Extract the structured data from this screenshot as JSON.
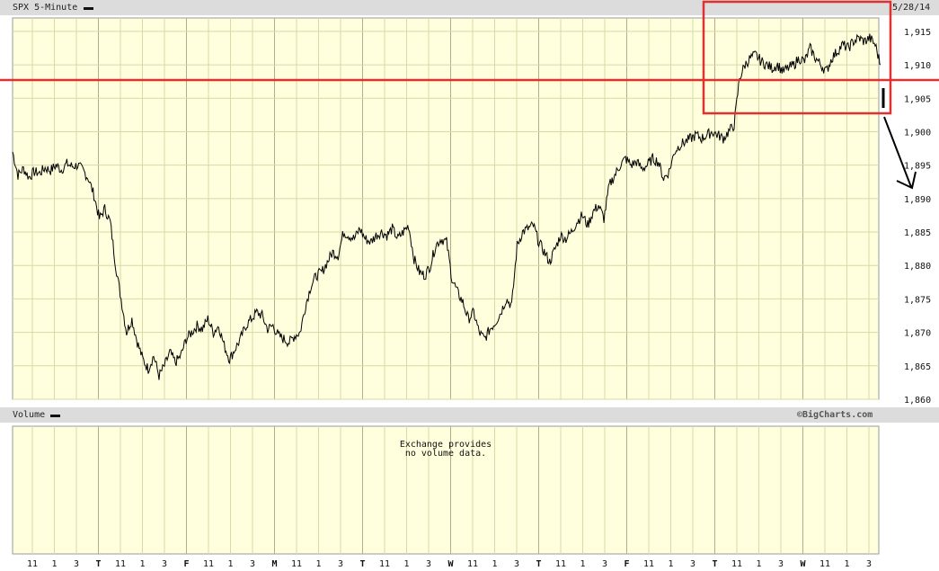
{
  "header": {
    "symbol": "SPX 5-Minute",
    "date": "5/28/14"
  },
  "volume_panel": {
    "label": "Volume",
    "copyright": "©BigCharts.com",
    "message_line1": "Exchange provides",
    "message_line2": "no volume data."
  },
  "chart_data": {
    "type": "line",
    "series": [
      {
        "name": "SPX 5-Minute",
        "values": [
          1897.0,
          1893.5,
          1894.5,
          1893.2,
          1894.0,
          1893.8,
          1894.6,
          1894.2,
          1895.0,
          1894.3,
          1895.2,
          1894.8,
          1895.0,
          1894.2,
          1893.0,
          1890.5,
          1887.0,
          1888.5,
          1886.5,
          1880.0,
          1875.0,
          1870.0,
          1872.0,
          1868.5,
          1866.0,
          1864.5,
          1866.5,
          1863.5,
          1865.0,
          1867.0,
          1865.5,
          1866.5,
          1869.0,
          1870.0,
          1871.0,
          1870.5,
          1872.0,
          1870.0,
          1871.0,
          1868.0,
          1866.0,
          1867.5,
          1869.0,
          1871.0,
          1872.0,
          1873.0,
          1872.5,
          1870.5,
          1871.0,
          1869.5,
          1869.0,
          1868.5,
          1869.5,
          1870.0,
          1874.0,
          1877.0,
          1878.5,
          1879.0,
          1880.5,
          1882.0,
          1881.5,
          1885.0,
          1884.5,
          1884.0,
          1885.5,
          1884.0,
          1883.5,
          1884.5,
          1885.0,
          1884.5,
          1885.5,
          1884.0,
          1885.0,
          1886.0,
          1881.0,
          1879.0,
          1878.5,
          1880.0,
          1883.0,
          1884.0,
          1883.5,
          1878.0,
          1876.0,
          1874.5,
          1872.0,
          1873.0,
          1870.0,
          1869.0,
          1870.5,
          1871.5,
          1873.0,
          1875.0,
          1874.0,
          1883.0,
          1885.0,
          1885.5,
          1886.0,
          1883.5,
          1882.0,
          1880.5,
          1882.5,
          1884.5,
          1884.0,
          1885.0,
          1886.5,
          1887.5,
          1886.0,
          1888.0,
          1889.0,
          1887.0,
          1892.0,
          1893.5,
          1895.0,
          1896.0,
          1895.0,
          1895.5,
          1894.5,
          1895.0,
          1896.0,
          1895.5,
          1893.0,
          1894.0,
          1897.0,
          1898.0,
          1898.5,
          1899.0,
          1899.5,
          1899.0,
          1899.5,
          1900.0,
          1899.5,
          1899.0,
          1900.0,
          1901.0,
          1908.0,
          1910.0,
          1911.0,
          1911.5,
          1910.5,
          1910.0,
          1909.5,
          1910.0,
          1909.0,
          1909.5,
          1910.0,
          1911.0,
          1910.5,
          1912.5,
          1911.0,
          1910.0,
          1909.0,
          1911.0,
          1912.0,
          1913.0,
          1912.5,
          1913.5,
          1914.0,
          1913.5,
          1914.0,
          1913.0,
          1910.0
        ]
      }
    ],
    "ylim": [
      1860,
      1917
    ],
    "y_ticks": [
      "1,915",
      "1,910",
      "1,905",
      "1,900",
      "1,895",
      "1,890",
      "1,885",
      "1,880",
      "1,875",
      "1,870",
      "1,865",
      "1,860"
    ],
    "x_ticks": [
      "11",
      "1",
      "3",
      "T",
      "11",
      "1",
      "3",
      "F",
      "11",
      "1",
      "3",
      "M",
      "11",
      "1",
      "3",
      "T",
      "11",
      "1",
      "3",
      "W",
      "11",
      "1",
      "3",
      "T",
      "11",
      "1",
      "3",
      "F",
      "11",
      "1",
      "3",
      "T",
      "11",
      "1",
      "3",
      "W",
      "11",
      "1",
      "3"
    ],
    "grid": true,
    "annotations": [
      "red box highlighting recent high range",
      "red horizontal line near 1,906",
      "black arrow pointing down toward 1,890"
    ]
  }
}
